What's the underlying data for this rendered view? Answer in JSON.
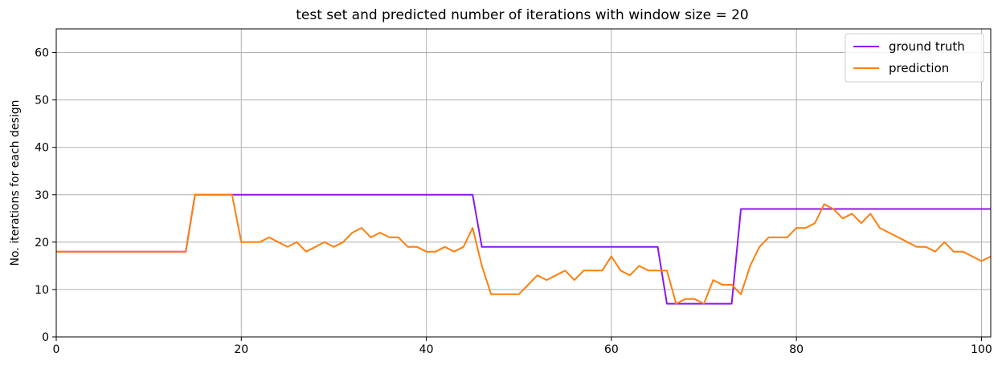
{
  "chart_data": {
    "type": "line",
    "title": "test set and predicted number of iterations with window size = 20",
    "xlabel": "",
    "ylabel": "No. iterations for each design",
    "xlim": [
      0,
      101
    ],
    "ylim": [
      0,
      65
    ],
    "xticks": [
      0,
      20,
      40,
      60,
      80,
      100
    ],
    "yticks": [
      0,
      10,
      20,
      30,
      40,
      50,
      60
    ],
    "grid": true,
    "legend_position": "top-right",
    "series": [
      {
        "name": "ground truth",
        "color": "#8a18ee",
        "points": [
          [
            0,
            18
          ],
          [
            14,
            18
          ],
          [
            15,
            30
          ],
          [
            45,
            30
          ],
          [
            46,
            19
          ],
          [
            65,
            19
          ],
          [
            66,
            7
          ],
          [
            73,
            7
          ],
          [
            74,
            27
          ],
          [
            101,
            27
          ]
        ]
      },
      {
        "name": "prediction",
        "color": "#ff7f0e",
        "points": [
          [
            0,
            18
          ],
          [
            14,
            18
          ],
          [
            15,
            30
          ],
          [
            19,
            30
          ],
          [
            20,
            20
          ],
          [
            21,
            20
          ],
          [
            22,
            20
          ],
          [
            23,
            21
          ],
          [
            24,
            20
          ],
          [
            25,
            19
          ],
          [
            26,
            20
          ],
          [
            27,
            18
          ],
          [
            28,
            19
          ],
          [
            29,
            20
          ],
          [
            30,
            19
          ],
          [
            31,
            20
          ],
          [
            32,
            22
          ],
          [
            33,
            23
          ],
          [
            34,
            21
          ],
          [
            35,
            22
          ],
          [
            36,
            21
          ],
          [
            37,
            21
          ],
          [
            38,
            19
          ],
          [
            39,
            19
          ],
          [
            40,
            18
          ],
          [
            41,
            18
          ],
          [
            42,
            19
          ],
          [
            43,
            18
          ],
          [
            44,
            19
          ],
          [
            45,
            23
          ],
          [
            46,
            15
          ],
          [
            47,
            9
          ],
          [
            48,
            9
          ],
          [
            49,
            9
          ],
          [
            50,
            9
          ],
          [
            51,
            11
          ],
          [
            52,
            13
          ],
          [
            53,
            12
          ],
          [
            54,
            13
          ],
          [
            55,
            14
          ],
          [
            56,
            12
          ],
          [
            57,
            14
          ],
          [
            58,
            14
          ],
          [
            59,
            14
          ],
          [
            60,
            17
          ],
          [
            61,
            14
          ],
          [
            62,
            13
          ],
          [
            63,
            15
          ],
          [
            64,
            14
          ],
          [
            65,
            14
          ],
          [
            66,
            14
          ],
          [
            67,
            7
          ],
          [
            68,
            8
          ],
          [
            69,
            8
          ],
          [
            70,
            7
          ],
          [
            71,
            12
          ],
          [
            72,
            11
          ],
          [
            73,
            11
          ],
          [
            74,
            9
          ],
          [
            75,
            15
          ],
          [
            76,
            19
          ],
          [
            77,
            21
          ],
          [
            78,
            21
          ],
          [
            79,
            21
          ],
          [
            80,
            23
          ],
          [
            81,
            23
          ],
          [
            82,
            24
          ],
          [
            83,
            28
          ],
          [
            84,
            27
          ],
          [
            85,
            25
          ],
          [
            86,
            26
          ],
          [
            87,
            24
          ],
          [
            88,
            26
          ],
          [
            89,
            23
          ],
          [
            90,
            22
          ],
          [
            91,
            21
          ],
          [
            92,
            20
          ],
          [
            93,
            19
          ],
          [
            94,
            19
          ],
          [
            95,
            18
          ],
          [
            96,
            20
          ],
          [
            97,
            18
          ],
          [
            98,
            18
          ],
          [
            99,
            17
          ],
          [
            100,
            16
          ],
          [
            101,
            17
          ]
        ]
      }
    ]
  }
}
